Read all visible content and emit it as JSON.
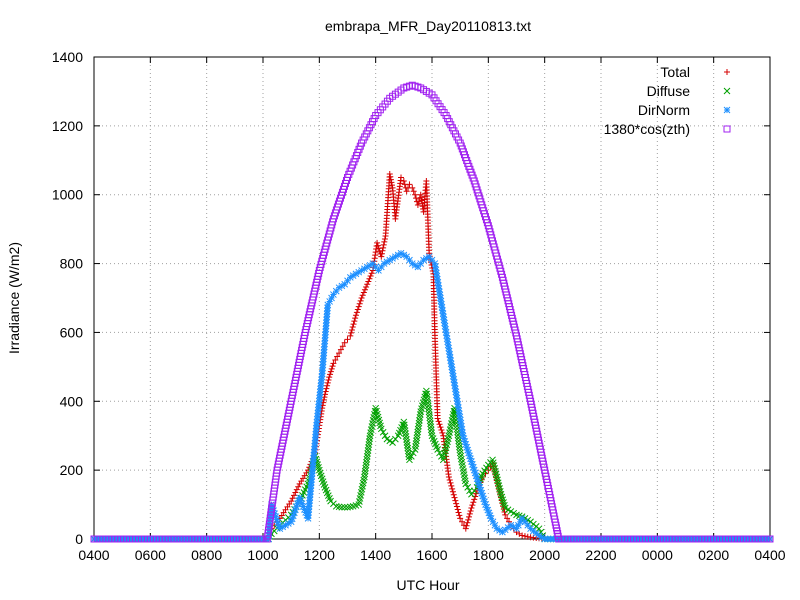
{
  "chart_data": {
    "type": "scatter",
    "title": "embrapa_MFR_Day20110813.txt",
    "xlabel": "UTC Hour",
    "ylabel": "Irradiance (W/m2)",
    "x_axis": {
      "min": 0,
      "max": 24,
      "tick_values": [
        0,
        2,
        4,
        6,
        8,
        10,
        12,
        14,
        16,
        18,
        20,
        22,
        24
      ],
      "tick_labels": [
        "0400",
        "0600",
        "0800",
        "1000",
        "1200",
        "1400",
        "1600",
        "1800",
        "2000",
        "2200",
        "0000",
        "0200",
        "0400"
      ],
      "note": "x values are hours elapsed since 04:00 UTC, the first tick"
    },
    "y_axis": {
      "min": 0,
      "max": 1400,
      "tick_values": [
        0,
        200,
        400,
        600,
        800,
        1000,
        1200,
        1400
      ],
      "tick_labels": [
        "0",
        "200",
        "400",
        "600",
        "800",
        "1000",
        "1200",
        "1400"
      ]
    },
    "grid": true,
    "legend": {
      "position": "top-right"
    },
    "series": [
      {
        "name": "Total",
        "marker": "plus",
        "color": "#d40000",
        "points": [
          [
            0,
            0
          ],
          [
            2,
            0
          ],
          [
            4,
            0
          ],
          [
            6,
            0
          ],
          [
            6.2,
            0
          ],
          [
            6.3,
            30
          ],
          [
            6.6,
            60
          ],
          [
            7.0,
            110
          ],
          [
            7.3,
            160
          ],
          [
            7.6,
            200
          ],
          [
            7.85,
            250
          ],
          [
            8.0,
            330
          ],
          [
            8.1,
            380
          ],
          [
            8.2,
            420
          ],
          [
            8.35,
            470
          ],
          [
            8.5,
            510
          ],
          [
            8.7,
            540
          ],
          [
            8.9,
            570
          ],
          [
            9.1,
            590
          ],
          [
            9.3,
            650
          ],
          [
            9.5,
            700
          ],
          [
            9.7,
            740
          ],
          [
            9.9,
            780
          ],
          [
            10.05,
            860
          ],
          [
            10.2,
            820
          ],
          [
            10.35,
            880
          ],
          [
            10.5,
            1060
          ],
          [
            10.6,
            1020
          ],
          [
            10.7,
            930
          ],
          [
            10.8,
            990
          ],
          [
            10.9,
            1050
          ],
          [
            11.0,
            1040
          ],
          [
            11.1,
            1010
          ],
          [
            11.2,
            1030
          ],
          [
            11.3,
            1020
          ],
          [
            11.4,
            1000
          ],
          [
            11.5,
            970
          ],
          [
            11.6,
            1000
          ],
          [
            11.7,
            950
          ],
          [
            11.8,
            1040
          ],
          [
            11.9,
            830
          ],
          [
            12.05,
            770
          ],
          [
            12.1,
            600
          ],
          [
            12.2,
            350
          ],
          [
            12.4,
            300
          ],
          [
            12.5,
            240
          ],
          [
            12.6,
            180
          ],
          [
            12.8,
            120
          ],
          [
            13.0,
            60
          ],
          [
            13.2,
            30
          ],
          [
            13.4,
            90
          ],
          [
            13.6,
            140
          ],
          [
            13.8,
            180
          ],
          [
            14.0,
            200
          ],
          [
            14.15,
            220
          ],
          [
            14.3,
            170
          ],
          [
            14.45,
            120
          ],
          [
            14.6,
            70
          ],
          [
            14.8,
            40
          ],
          [
            15.0,
            20
          ],
          [
            15.2,
            10
          ],
          [
            15.5,
            5
          ],
          [
            16.0,
            0
          ],
          [
            18,
            0
          ],
          [
            20,
            0
          ],
          [
            22,
            0
          ],
          [
            24,
            0
          ]
        ]
      },
      {
        "name": "Diffuse",
        "marker": "cross",
        "color": "#00a000",
        "points": [
          [
            0,
            0
          ],
          [
            2,
            0
          ],
          [
            4,
            0
          ],
          [
            6,
            0
          ],
          [
            6.2,
            0
          ],
          [
            6.3,
            15
          ],
          [
            6.6,
            40
          ],
          [
            7.0,
            70
          ],
          [
            7.3,
            110
          ],
          [
            7.6,
            160
          ],
          [
            7.85,
            240
          ],
          [
            8.0,
            200
          ],
          [
            8.2,
            150
          ],
          [
            8.4,
            110
          ],
          [
            8.6,
            95
          ],
          [
            8.8,
            92
          ],
          [
            9.0,
            92
          ],
          [
            9.2,
            95
          ],
          [
            9.4,
            100
          ],
          [
            9.6,
            180
          ],
          [
            9.8,
            300
          ],
          [
            10.0,
            380
          ],
          [
            10.2,
            320
          ],
          [
            10.4,
            290
          ],
          [
            10.6,
            280
          ],
          [
            10.8,
            300
          ],
          [
            11.0,
            340
          ],
          [
            11.2,
            230
          ],
          [
            11.4,
            260
          ],
          [
            11.6,
            370
          ],
          [
            11.8,
            430
          ],
          [
            12.0,
            300
          ],
          [
            12.2,
            260
          ],
          [
            12.4,
            230
          ],
          [
            12.6,
            300
          ],
          [
            12.8,
            380
          ],
          [
            13.0,
            250
          ],
          [
            13.2,
            160
          ],
          [
            13.4,
            130
          ],
          [
            13.6,
            150
          ],
          [
            13.8,
            190
          ],
          [
            14.0,
            215
          ],
          [
            14.15,
            230
          ],
          [
            14.3,
            180
          ],
          [
            14.45,
            130
          ],
          [
            14.6,
            90
          ],
          [
            14.8,
            80
          ],
          [
            15.0,
            70
          ],
          [
            15.2,
            65
          ],
          [
            15.5,
            50
          ],
          [
            15.8,
            30
          ],
          [
            16.0,
            0
          ],
          [
            18,
            0
          ],
          [
            20,
            0
          ],
          [
            22,
            0
          ],
          [
            24,
            0
          ]
        ]
      },
      {
        "name": "DirNorm",
        "marker": "star",
        "color": "#1e90ff",
        "points": [
          [
            0,
            0
          ],
          [
            2,
            0
          ],
          [
            4,
            0
          ],
          [
            6,
            0
          ],
          [
            6.2,
            0
          ],
          [
            6.3,
            100
          ],
          [
            6.6,
            30
          ],
          [
            7.0,
            50
          ],
          [
            7.3,
            120
          ],
          [
            7.6,
            60
          ],
          [
            7.9,
            330
          ],
          [
            8.1,
            480
          ],
          [
            8.3,
            680
          ],
          [
            8.5,
            710
          ],
          [
            8.7,
            730
          ],
          [
            8.9,
            740
          ],
          [
            9.1,
            760
          ],
          [
            9.3,
            770
          ],
          [
            9.5,
            780
          ],
          [
            9.7,
            790
          ],
          [
            9.9,
            800
          ],
          [
            10.1,
            780
          ],
          [
            10.3,
            800
          ],
          [
            10.5,
            810
          ],
          [
            10.7,
            820
          ],
          [
            10.9,
            830
          ],
          [
            11.1,
            820
          ],
          [
            11.3,
            800
          ],
          [
            11.5,
            790
          ],
          [
            11.7,
            810
          ],
          [
            11.9,
            820
          ],
          [
            12.1,
            800
          ],
          [
            12.3,
            700
          ],
          [
            12.5,
            600
          ],
          [
            12.7,
            500
          ],
          [
            12.9,
            400
          ],
          [
            13.1,
            300
          ],
          [
            13.3,
            250
          ],
          [
            13.5,
            200
          ],
          [
            13.7,
            150
          ],
          [
            13.9,
            100
          ],
          [
            14.1,
            60
          ],
          [
            14.3,
            30
          ],
          [
            14.5,
            20
          ],
          [
            14.8,
            40
          ],
          [
            15.0,
            30
          ],
          [
            15.2,
            60
          ],
          [
            15.5,
            30
          ],
          [
            15.8,
            10
          ],
          [
            16.0,
            0
          ],
          [
            18,
            0
          ],
          [
            20,
            0
          ],
          [
            22,
            0
          ],
          [
            24,
            0
          ]
        ]
      },
      {
        "name": "1380*cos(zth)",
        "marker": "square",
        "color": "#a020f0",
        "points": [
          [
            0,
            0
          ],
          [
            2,
            0
          ],
          [
            4,
            0
          ],
          [
            6,
            0
          ],
          [
            6.15,
            0
          ],
          [
            6.5,
            200
          ],
          [
            7.0,
            400
          ],
          [
            7.5,
            600
          ],
          [
            8.0,
            780
          ],
          [
            8.5,
            930
          ],
          [
            9.0,
            1050
          ],
          [
            9.5,
            1150
          ],
          [
            10.0,
            1230
          ],
          [
            10.5,
            1280
          ],
          [
            11.0,
            1310
          ],
          [
            11.3,
            1318
          ],
          [
            11.6,
            1310
          ],
          [
            12.0,
            1290
          ],
          [
            12.5,
            1230
          ],
          [
            13.0,
            1150
          ],
          [
            13.5,
            1040
          ],
          [
            14.0,
            910
          ],
          [
            14.5,
            760
          ],
          [
            15.0,
            590
          ],
          [
            15.5,
            400
          ],
          [
            16.0,
            200
          ],
          [
            16.4,
            40
          ],
          [
            16.5,
            0
          ],
          [
            18,
            0
          ],
          [
            20,
            0
          ],
          [
            22,
            0
          ],
          [
            24,
            0
          ]
        ]
      }
    ]
  }
}
